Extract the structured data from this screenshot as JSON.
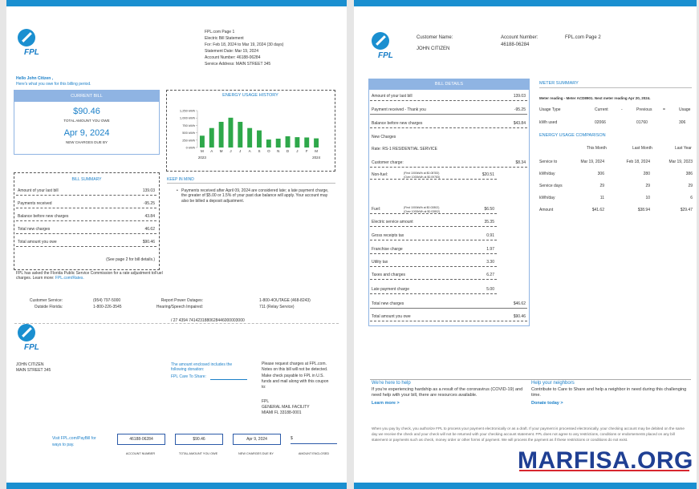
{
  "left_page": {
    "logo": "FPL",
    "header": [
      "FPL.com  Page 1",
      "Electric Bill Statement",
      "For: Feb 18, 2024 to Mar 19, 2024 (30 days)",
      "Statement Date: Mar 19, 2024",
      "Account Number: 46188-06284",
      "Service Address: MAIN STREET 345"
    ],
    "greeting": "Hello John Citizen ,",
    "greeting_sub": "Here's what you owe for this billing period.",
    "current_bill": {
      "title": "CURRENT BILL",
      "amount": "$90.46",
      "amount_label": "TOTAL AMOUNT YOU OWE",
      "due_date": "Apr 9, 2024",
      "due_label": "NEW CHARGES DUE BY"
    },
    "usage_chart": {
      "type": "bar",
      "title": "ENERGY USAGE HISTORY",
      "color": "#2ea84a",
      "categories": [
        "M",
        "A",
        "M",
        "J",
        "J",
        "A",
        "S",
        "O",
        "N",
        "D",
        "J",
        "F",
        "M"
      ],
      "values": [
        400,
        660,
        870,
        1010,
        870,
        660,
        580,
        270,
        300,
        380,
        350,
        340,
        310
      ],
      "ylim": [
        0,
        1250
      ],
      "yticks": [
        {
          "value": 1250,
          "label": "1,250 kWh"
        },
        {
          "value": 1000,
          "label": "1,000 kWh"
        },
        {
          "value": 750,
          "label": "750 kWh"
        },
        {
          "value": 500,
          "label": "500 kWh"
        },
        {
          "value": 250,
          "label": "250 kWh"
        },
        {
          "value": 0,
          "label": "0 kWh"
        }
      ],
      "year_labels": [
        "2023",
        "2024"
      ]
    },
    "bill_summary": {
      "title": "BILL SUMMARY",
      "rows": [
        [
          "Amount of your last bill",
          "139.03"
        ],
        [
          "Payments received",
          "-95.25"
        ],
        [
          "Balance before new charges",
          "43.84"
        ],
        [
          "Total new charges",
          "46.62"
        ],
        [
          "Total amount you owe",
          "$90.46"
        ]
      ],
      "note": "(See page 2 for bill details.)"
    },
    "keep_in_mind": {
      "title": "KEEP IN MIND",
      "text": "Payments received after April 09, 2024 are considered late; a late payment charge, the greater of $5.00 or 1.5% of your past due balance will apply. Your account may also be billed a deposit adjustment."
    },
    "rate_notice": "FPL has asked the Florida Public Service Commission for a rate adjustment toFuel charges. Learn more:",
    "rate_link": "FPL.com/Rates.",
    "contacts": [
      [
        "Customer Service:",
        "(954) 797-5000"
      ],
      [
        "Outside Florida:",
        "1-800-226-3545"
      ],
      [
        "Report Power Outages:",
        "1-800-4OUTAGE (468-8243)"
      ],
      [
        "Hearing/Speech Impaired:",
        "711 (Relay Service)"
      ]
    ],
    "scan_line": "/ 27 4394 7414231880628446000003000",
    "coupon": {
      "logo": "FPL",
      "name": "JOHN CITIZEN",
      "address": "MAIN STREET 345",
      "donation": "The amount enclosed includes the following donation:",
      "donation_field": "FPL Care To Share:",
      "mail_note": "Please request charges at FPL.com. Notes on this bill will not be detected. Make check payable to FPL in U.S. funds and mail along with this coupon to:",
      "mail_address": [
        "FPL",
        "GENERAL MAIL FACILITY",
        "MIAMI FL 33188-0001"
      ],
      "pay_note": "Visit FPL.com/PayBill for ways to pay.",
      "boxes": [
        [
          "46188-06284",
          "ACCOUNT NUMBER"
        ],
        [
          "$90.46",
          "TOTAL AMOUNT YOU OWE"
        ],
        [
          "Apr 9, 2024",
          "NEW CHARGES DUE BY"
        ],
        [
          "$",
          "AMOUNT ENCLOSED"
        ]
      ]
    }
  },
  "right_page": {
    "logo": "FPL",
    "customer_label": "Customer Name:",
    "customer_name": "JOHN CITIZEN",
    "account_label": "Account Number:",
    "account_number": "46188-06284",
    "page_label": "FPL.com Page 2",
    "bill_details": {
      "title": "BILL DETAILS",
      "rows": [
        {
          "label": "Amount of your last bill",
          "amount": "139.03"
        },
        {
          "label": "Payment received - Thank you",
          "amount": "-95.25"
        },
        {
          "label": "Balance before new charges",
          "amount": "$43.84"
        },
        {
          "label": "New Charges"
        },
        {
          "label": "Rate: RS-1 RESIDENTIAL SERVICE"
        },
        {
          "label": "Customer charge:",
          "amount": "$8.34"
        },
        {
          "label": "Non-fuel:",
          "notes": [
            "(First 1000kWh at $0.08783)",
            "(Over 1000kWh at $0.09783)"
          ],
          "amount": "$20.51"
        },
        {
          "label": "Fuel:",
          "notes": [
            "(First 1000kWh at $0.02802)",
            "(Over 1000kWh at $0.03802)"
          ],
          "amount": "$6.50"
        },
        {
          "label": "Electric service amount",
          "amount": "35.35"
        },
        {
          "label": "Gross receipts tax",
          "amount": "0.91"
        },
        {
          "label": "Franchise charge",
          "amount": "1.97"
        },
        {
          "label": "Utility tax",
          "amount": "3.30"
        },
        {
          "label": "Taxes and charges",
          "amount": "6.27"
        },
        {
          "label": "Late payment charge",
          "amount": "5.00"
        },
        {
          "label": "Total new charges",
          "amount": "$46.62"
        },
        {
          "label": "Total amount you owe",
          "amount": "$90.46"
        }
      ]
    },
    "meter_summary": {
      "title": "METER SUMMARY",
      "reading": "Meter reading - Meter ACD8901. Next meter reading Apr 20, 2024.",
      "header": [
        "Usage Type",
        "Current",
        "-",
        "Previous",
        "=",
        "Usage"
      ],
      "row": [
        "kWh used",
        "02066",
        "",
        "01760",
        "",
        "306"
      ]
    },
    "comparison": {
      "title": "ENERGY USAGE COMPARISON",
      "header": [
        "This Month",
        "Last Month",
        "Last Year"
      ],
      "rows": [
        [
          "Service to",
          "Mar 19, 2024",
          "Feb 18, 2024",
          "Mar 19, 2023"
        ],
        [
          "kWh/day",
          "306",
          "280",
          "386"
        ],
        [
          "Service days",
          "29",
          "29",
          "29"
        ],
        [
          "kWh/day",
          "11",
          "10",
          "6"
        ],
        [
          "Amount",
          "$41.62",
          "$38.94",
          "$29.47"
        ]
      ]
    },
    "help": {
      "title": "We're here to help",
      "text": "If you're experiencing hardship as a result of the coronavirus (COVID-19) and need help with your bill, there are resources available.",
      "link": "Learn more >"
    },
    "neighbors": {
      "title": "Help your neighbors",
      "text": "Contribute to Care to Share and help a neighbor in need during this challenging time.",
      "link": "Donate today >"
    },
    "fine_print": "When you pay by check, you authorize FPL to process your payment electronically or as a draft. If your payment is processed electronically, your checking account may be debited on the same day we receive the check and your check will not be returned with your checking account statement. FPL does not agree to any restrictions, conditions or endorsements placed on any bill statement or payments such as check, money order or other forms of payment. We will process the payment as if these restrictions or conditions do not exist."
  },
  "watermark": "MARFISA.ORG"
}
